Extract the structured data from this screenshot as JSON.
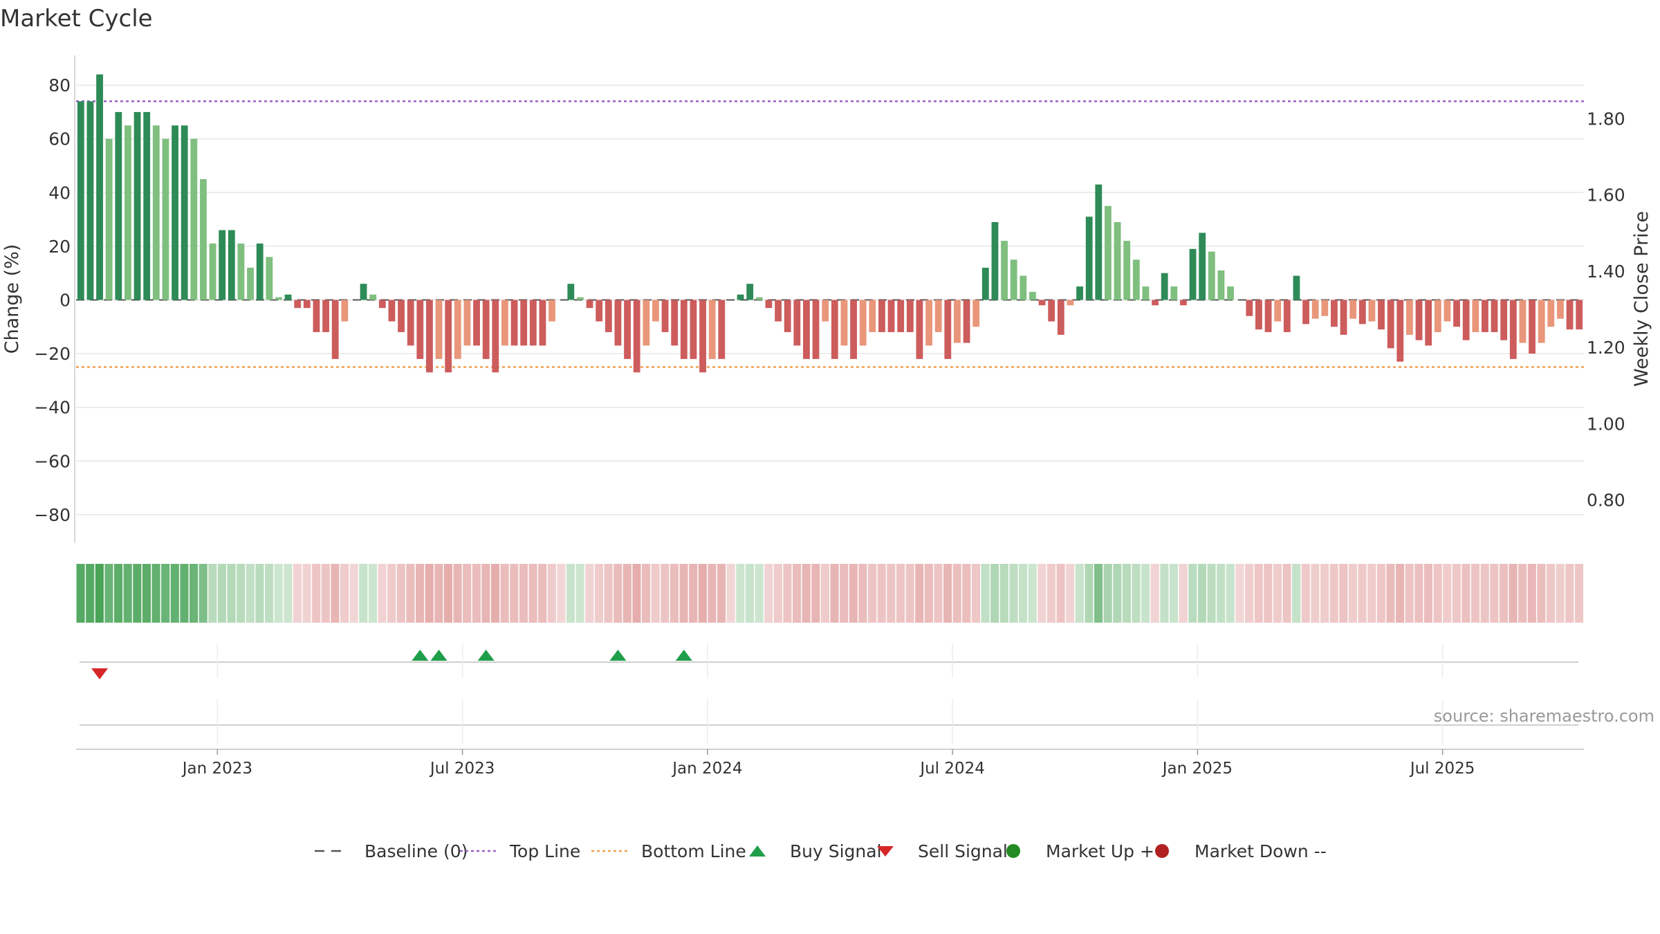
{
  "title": "Market Cycle",
  "source": "source: sharemaestro.com",
  "colors": {
    "strong_up": "#2e8b57",
    "weak_up": "#7fbf7f",
    "strong_down": "#cd5c5c",
    "weak_down": "#e9967a",
    "top_line": "#9a5fc8",
    "bottom_line": "#f0a050",
    "buy": "#1e9e4a",
    "sell": "#d62728",
    "market_up": "#228b22",
    "market_down": "#b22222",
    "baseline": "#555555",
    "grid": "#e6e6e6"
  },
  "legend": [
    {
      "label": "Baseline (0)",
      "icon": "dash-line"
    },
    {
      "label": "Top Line",
      "icon": "dotted-purple-line"
    },
    {
      "label": "Bottom Line",
      "icon": "dotted-orange-line"
    },
    {
      "label": "Buy Signal",
      "icon": "triangle-up"
    },
    {
      "label": "Sell Signal",
      "icon": "triangle-down"
    },
    {
      "label": "Market Up ++",
      "icon": "green-dot"
    },
    {
      "label": "Market Down --",
      "icon": "red-dot"
    }
  ],
  "chart_data": {
    "type": "bar",
    "title": "Market Cycle",
    "ylabel": "Change (%)",
    "y2label": "Weekly Close Price",
    "ylim": [
      -90,
      90
    ],
    "y2lim": [
      0.68,
      1.89
    ],
    "yticks": [
      -80,
      -60,
      -40,
      -20,
      0,
      20,
      40,
      60,
      80
    ],
    "ytick_labels": [
      "−80",
      "−60",
      "−40",
      "−20",
      "0",
      "20",
      "40",
      "60",
      "80"
    ],
    "y2ticks": [
      0.8,
      1.0,
      1.2,
      1.4,
      1.6,
      1.8
    ],
    "y2tick_labels": [
      "0.80",
      "1.00",
      "1.20",
      "1.40",
      "1.60",
      "1.80"
    ],
    "xticks": [
      {
        "label": "Jan 2023",
        "week": 15
      },
      {
        "label": "Jul 2023",
        "week": 41
      },
      {
        "label": "Jan 2024",
        "week": 67
      },
      {
        "label": "Jul 2024",
        "week": 93
      },
      {
        "label": "Jan 2025",
        "week": 119
      },
      {
        "label": "Jul 2025",
        "week": 145
      }
    ],
    "top_line": 74,
    "bottom_line": -25,
    "grid": true,
    "legend_position": "bottom",
    "values": [
      74,
      74,
      84,
      60,
      70,
      65,
      70,
      70,
      65,
      60,
      65,
      65,
      60,
      45,
      21,
      26,
      26,
      21,
      12,
      21,
      16,
      1,
      2,
      -3,
      -3,
      -12,
      -12,
      -22,
      -8,
      0,
      6,
      2,
      -3,
      -8,
      -12,
      -17,
      -22,
      -27,
      -22,
      -27,
      -22,
      -17,
      -17,
      -22,
      -27,
      -17,
      -17,
      -17,
      -17,
      -17,
      -8,
      0,
      6,
      1,
      -3,
      -8,
      -12,
      -17,
      -22,
      -27,
      -17,
      -8,
      -12,
      -17,
      -22,
      -22,
      -27,
      -22,
      -22,
      0,
      2,
      6,
      1,
      -3,
      -8,
      -12,
      -17,
      -22,
      -22,
      -8,
      -22,
      -17,
      -22,
      -17,
      -12,
      -12,
      -12,
      -12,
      -12,
      -22,
      -17,
      -12,
      -22,
      -16,
      -16,
      -10,
      12,
      29,
      22,
      15,
      9,
      3,
      -2,
      -8,
      -13,
      -2,
      5,
      31,
      43,
      35,
      29,
      22,
      15,
      5,
      -2,
      10,
      5,
      -2,
      19,
      25,
      18,
      11,
      5,
      0,
      -6,
      -11,
      -12,
      -8,
      -12,
      9,
      -9,
      -7,
      -6,
      -10,
      -13,
      -7,
      -9,
      -8,
      -11,
      -18,
      -23,
      -13,
      -15,
      -17,
      -12,
      -8,
      -10,
      -15,
      -12,
      -12,
      -12,
      -15,
      -22,
      -16,
      -20,
      -16,
      -10,
      -7,
      -11,
      -11
    ],
    "buy_signals": [
      36,
      38,
      43,
      57,
      64
    ],
    "sell_signals": [
      2
    ]
  }
}
